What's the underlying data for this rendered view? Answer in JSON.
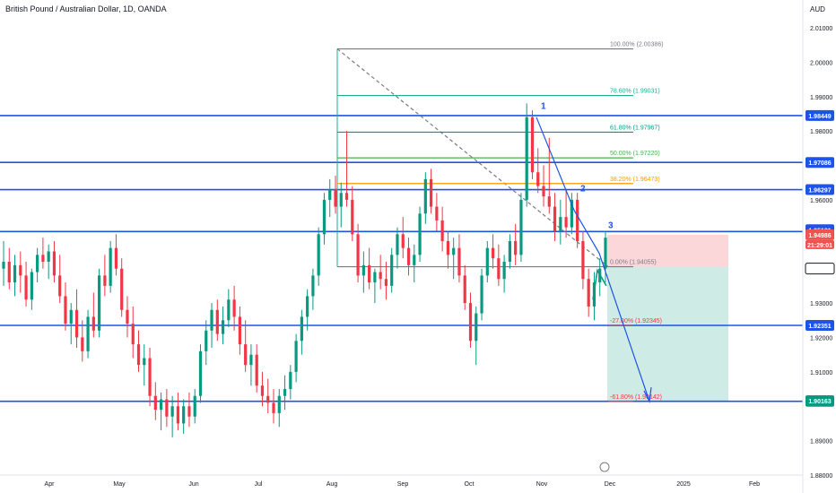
{
  "header": {
    "title": "British Pound / Australian Dollar, 1D, OANDA",
    "currency": "AUD"
  },
  "chart_data": {
    "type": "candlestick",
    "x_axis": {
      "labels": [
        "Apr",
        "May",
        "Jun",
        "Jul",
        "Aug",
        "Sep",
        "Oct",
        "Nov",
        "Dec",
        "2025",
        "Feb"
      ]
    },
    "y_axis": {
      "range": [
        1.88,
        2.01
      ],
      "ticks": [
        "2.01000",
        "2.00000",
        "1.99000",
        "1.98000",
        "1.96000",
        "1.95000",
        "1.93000",
        "1.92000",
        "1.91000",
        "1.89000",
        "1.88000"
      ]
    },
    "horizontal_levels": [
      {
        "value": 1.98449,
        "label": "1.98449",
        "color": "#1e53e5",
        "badge": "blue"
      },
      {
        "value": 1.97086,
        "label": "1.97086",
        "color": "#1e53e5",
        "badge": "blue"
      },
      {
        "value": 1.96297,
        "label": "1.96297",
        "color": "#1e53e5",
        "badge": "blue"
      },
      {
        "value": 1.95077,
        "label": "1.95077",
        "color": "#1e53e5",
        "badge": "blue"
      },
      {
        "value": 1.92351,
        "label": "1.92351",
        "color": "#1e53e5",
        "badge": "blue"
      },
      {
        "value": 1.90145,
        "label": "1.90145",
        "color": "#1e53e5",
        "badge": "blue"
      }
    ],
    "price_badges": [
      {
        "value": 1.95131,
        "label": "1.95131",
        "color": "#1e53e5"
      },
      {
        "value": 1.94986,
        "label": "1.94986",
        "color": "#ef5350"
      },
      {
        "value": 1.94001,
        "label": "1.94001",
        "color": "#ffffff"
      },
      {
        "value": 1.90163,
        "label": "1.90163",
        "color": "#089981"
      }
    ],
    "countdown": "21:29:01",
    "fib_retracement": [
      {
        "label": "100.00% (2.00386)",
        "value": 2.00386,
        "color": "#787b86"
      },
      {
        "label": "78.60% (1.99031)",
        "value": 1.99031,
        "color": "#22ab94"
      },
      {
        "label": "61.80% (1.97967)",
        "value": 1.97967,
        "color": "#089981"
      },
      {
        "label": "50.00% (1.97220)",
        "value": 1.9722,
        "color": "#4caf50"
      },
      {
        "label": "38.20% (1.96473)",
        "value": 1.96473,
        "color": "#ff9800"
      },
      {
        "label": "0.00% (1.94055)",
        "value": 1.94055,
        "color": "#787b86"
      },
      {
        "label": "-27.00% (1.92345)",
        "value": 1.92345,
        "color": "#f23645"
      },
      {
        "label": "-61.80% (1.90142)",
        "value": 1.90142,
        "color": "#f23645"
      }
    ],
    "wave_labels": [
      "1",
      "2",
      "3"
    ],
    "position": {
      "entry": 1.94055,
      "stop": 1.94986,
      "target": 1.90142
    },
    "ohlc_path": [
      [
        1.94,
        1.948,
        1.935,
        1.942
      ],
      [
        1.942,
        1.946,
        1.934,
        1.936
      ],
      [
        1.936,
        1.944,
        1.932,
        1.941
      ],
      [
        1.941,
        1.945,
        1.933,
        1.938
      ],
      [
        1.938,
        1.942,
        1.929,
        1.931
      ],
      [
        1.931,
        1.94,
        1.928,
        1.939
      ],
      [
        1.939,
        1.946,
        1.936,
        1.944
      ],
      [
        1.944,
        1.949,
        1.94,
        1.942
      ],
      [
        1.942,
        1.947,
        1.937,
        1.945
      ],
      [
        1.945,
        1.948,
        1.936,
        1.938
      ],
      [
        1.938,
        1.944,
        1.93,
        1.932
      ],
      [
        1.932,
        1.936,
        1.922,
        1.924
      ],
      [
        1.924,
        1.93,
        1.918,
        1.928
      ],
      [
        1.928,
        1.934,
        1.917,
        1.92
      ],
      [
        1.92,
        1.925,
        1.913,
        1.916
      ],
      [
        1.916,
        1.928,
        1.914,
        1.926
      ],
      [
        1.926,
        1.933,
        1.92,
        1.922
      ],
      [
        1.922,
        1.94,
        1.92,
        1.938
      ],
      [
        1.938,
        1.944,
        1.932,
        1.935
      ],
      [
        1.935,
        1.948,
        1.933,
        1.946
      ],
      [
        1.946,
        1.95,
        1.938,
        1.94
      ],
      [
        1.94,
        1.943,
        1.926,
        1.928
      ],
      [
        1.928,
        1.932,
        1.92,
        1.924
      ],
      [
        1.924,
        1.929,
        1.914,
        1.918
      ],
      [
        1.918,
        1.922,
        1.91,
        1.912
      ],
      [
        1.912,
        1.918,
        1.906,
        1.914
      ],
      [
        1.914,
        1.917,
        1.9,
        1.903
      ],
      [
        1.903,
        1.907,
        1.896,
        1.899
      ],
      [
        1.899,
        1.904,
        1.893,
        1.902
      ],
      [
        1.902,
        1.905,
        1.894,
        1.897
      ],
      [
        1.897,
        1.903,
        1.891,
        1.9
      ],
      [
        1.9,
        1.904,
        1.893,
        1.895
      ],
      [
        1.895,
        1.902,
        1.892,
        1.9
      ],
      [
        1.9,
        1.904,
        1.894,
        1.897
      ],
      [
        1.897,
        1.905,
        1.895,
        1.903
      ],
      [
        1.903,
        1.918,
        1.901,
        1.916
      ],
      [
        1.916,
        1.925,
        1.912,
        1.922
      ],
      [
        1.922,
        1.93,
        1.917,
        1.928
      ],
      [
        1.928,
        1.931,
        1.919,
        1.921
      ],
      [
        1.921,
        1.929,
        1.918,
        1.925
      ],
      [
        1.925,
        1.934,
        1.923,
        1.931
      ],
      [
        1.931,
        1.935,
        1.922,
        1.926
      ],
      [
        1.926,
        1.929,
        1.915,
        1.918
      ],
      [
        1.918,
        1.925,
        1.91,
        1.912
      ],
      [
        1.912,
        1.918,
        1.906,
        1.915
      ],
      [
        1.915,
        1.918,
        1.904,
        1.906
      ],
      [
        1.906,
        1.91,
        1.9,
        1.903
      ],
      [
        1.903,
        1.908,
        1.898,
        1.901
      ],
      [
        1.901,
        1.905,
        1.895,
        1.898
      ],
      [
        1.898,
        1.905,
        1.894,
        1.903
      ],
      [
        1.903,
        1.909,
        1.899,
        1.905
      ],
      [
        1.905,
        1.912,
        1.902,
        1.91
      ],
      [
        1.91,
        1.921,
        1.907,
        1.919
      ],
      [
        1.919,
        1.928,
        1.915,
        1.926
      ],
      [
        1.926,
        1.934,
        1.922,
        1.932
      ],
      [
        1.932,
        1.94,
        1.928,
        1.938
      ],
      [
        1.938,
        1.952,
        1.935,
        1.95
      ],
      [
        1.95,
        1.962,
        1.947,
        1.96
      ],
      [
        1.96,
        1.966,
        1.955,
        1.963
      ],
      [
        1.963,
        1.967,
        1.956,
        1.958
      ],
      [
        1.958,
        1.965,
        1.952,
        1.962
      ],
      [
        1.962,
        1.98,
        1.958,
        1.96
      ],
      [
        1.96,
        1.964,
        1.948,
        1.95
      ],
      [
        1.95,
        1.953,
        1.936,
        1.938
      ],
      [
        1.938,
        1.945,
        1.933,
        1.941
      ],
      [
        1.941,
        1.946,
        1.934,
        1.936
      ],
      [
        1.936,
        1.94,
        1.93,
        1.939
      ],
      [
        1.939,
        1.944,
        1.934,
        1.937
      ],
      [
        1.937,
        1.942,
        1.931,
        1.935
      ],
      [
        1.935,
        1.946,
        1.933,
        1.944
      ],
      [
        1.944,
        1.952,
        1.94,
        1.95
      ],
      [
        1.95,
        1.955,
        1.943,
        1.946
      ],
      [
        1.946,
        1.949,
        1.938,
        1.941
      ],
      [
        1.941,
        1.947,
        1.936,
        1.944
      ],
      [
        1.944,
        1.958,
        1.942,
        1.956
      ],
      [
        1.956,
        1.968,
        1.953,
        1.966
      ],
      [
        1.966,
        1.969,
        1.956,
        1.958
      ],
      [
        1.958,
        1.962,
        1.951,
        1.954
      ],
      [
        1.954,
        1.958,
        1.945,
        1.948
      ],
      [
        1.948,
        1.951,
        1.94,
        1.944
      ],
      [
        1.944,
        1.949,
        1.937,
        1.946
      ],
      [
        1.946,
        1.95,
        1.936,
        1.938
      ],
      [
        1.938,
        1.941,
        1.928,
        1.93
      ],
      [
        1.93,
        1.933,
        1.917,
        1.919
      ],
      [
        1.919,
        1.929,
        1.912,
        1.927
      ],
      [
        1.927,
        1.94,
        1.925,
        1.938
      ],
      [
        1.938,
        1.948,
        1.936,
        1.946
      ],
      [
        1.946,
        1.95,
        1.94,
        1.943
      ],
      [
        1.943,
        1.947,
        1.935,
        1.937
      ],
      [
        1.937,
        1.944,
        1.933,
        1.942
      ],
      [
        1.942,
        1.95,
        1.94,
        1.948
      ],
      [
        1.948,
        1.953,
        1.941,
        1.944
      ],
      [
        1.944,
        1.962,
        1.942,
        1.96
      ],
      [
        1.96,
        1.988,
        1.958,
        1.984
      ],
      [
        1.984,
        1.986,
        1.966,
        1.968
      ],
      [
        1.968,
        1.975,
        1.962,
        1.964
      ],
      [
        1.964,
        1.97,
        1.958,
        1.961
      ],
      [
        1.961,
        1.978,
        1.956,
        1.958
      ],
      [
        1.958,
        1.962,
        1.948,
        1.951
      ],
      [
        1.951,
        1.96,
        1.947,
        1.955
      ],
      [
        1.955,
        1.963,
        1.949,
        1.952
      ],
      [
        1.952,
        1.962,
        1.95,
        1.96
      ],
      [
        1.96,
        1.962,
        1.946,
        1.948
      ],
      [
        1.948,
        1.951,
        1.934,
        1.937
      ],
      [
        1.937,
        1.94,
        1.926,
        1.929
      ],
      [
        1.929,
        1.939,
        1.925,
        1.936
      ],
      [
        1.936,
        1.943,
        1.932,
        1.94
      ],
      [
        1.94,
        1.951,
        1.936,
        1.949
      ]
    ]
  }
}
